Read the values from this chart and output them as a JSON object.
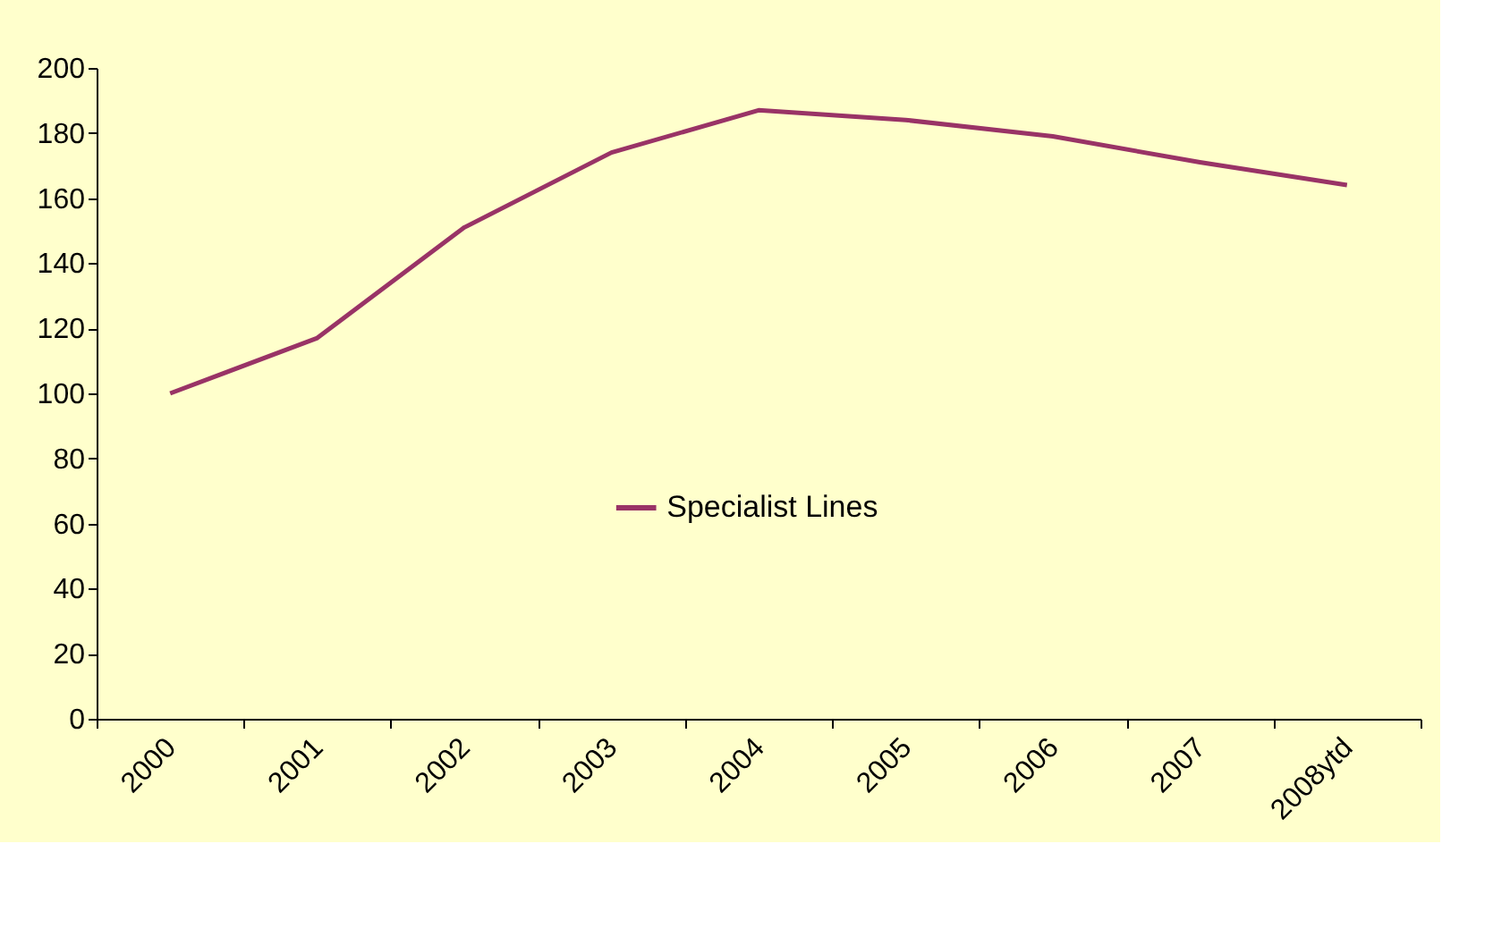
{
  "chart_data": {
    "type": "line",
    "categories": [
      "2000",
      "2001",
      "2002",
      "2003",
      "2004",
      "2005",
      "2006",
      "2007",
      "2008ytd"
    ],
    "series": [
      {
        "name": "Specialist Lines",
        "color": "#993366",
        "values": [
          100,
          117,
          151,
          174,
          187,
          184,
          179,
          171,
          164
        ]
      }
    ],
    "ylim": [
      0,
      200
    ],
    "yticks": [
      0,
      20,
      40,
      60,
      80,
      100,
      120,
      140,
      160,
      180,
      200
    ],
    "grid": false,
    "legend": "center",
    "marker": "none",
    "line_style": "solid"
  }
}
